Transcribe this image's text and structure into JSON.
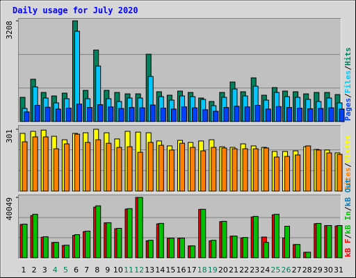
{
  "title": "Daily usage for July 2020",
  "separator": "/",
  "categories": [
    "1",
    "2",
    "3",
    "4",
    "5",
    "6",
    "7",
    "8",
    "9",
    "10",
    "11",
    "12",
    "13",
    "14",
    "15",
    "16",
    "17",
    "18",
    "19",
    "20",
    "21",
    "22",
    "23",
    "24",
    "25",
    "26",
    "27",
    "28",
    "29",
    "30",
    "31"
  ],
  "category_colors": [
    "#000000",
    "#000000",
    "#000000",
    "#00805c",
    "#00805c",
    "#000000",
    "#000000",
    "#000000",
    "#000000",
    "#000000",
    "#00805c",
    "#00805c",
    "#000000",
    "#000000",
    "#000000",
    "#000000",
    "#000000",
    "#00805c",
    "#00805c",
    "#000000",
    "#000000",
    "#000000",
    "#000000",
    "#000000",
    "#00805c",
    "#00805c",
    "#000000",
    "#000000",
    "#000000",
    "#000000",
    "#000000"
  ],
  "chart_data": [
    {
      "type": "bar",
      "ylim": [
        0,
        3208
      ],
      "yticks": [
        3208
      ],
      "draw_reversed": true,
      "series": [
        {
          "name": "Pages",
          "color": "#0040ff",
          "values": [
            310,
            520,
            460,
            400,
            430,
            560,
            450,
            540,
            470,
            420,
            450,
            440,
            530,
            430,
            400,
            470,
            440,
            380,
            330,
            450,
            490,
            470,
            520,
            400,
            480,
            450,
            430,
            410,
            420,
            440,
            400
          ]
        },
        {
          "name": "Files",
          "color": "#00c8ff",
          "values": [
            420,
            1106,
            752,
            597,
            730,
            2876,
            730,
            1770,
            730,
            641,
            752,
            752,
            1438,
            796,
            685,
            818,
            796,
            708,
            508,
            774,
            1039,
            818,
            1128,
            685,
            929,
            796,
            774,
            708,
            641,
            752,
            597
          ]
        },
        {
          "name": "Hits",
          "color": "#00805c",
          "values": [
            774,
            1350,
            929,
            818,
            907,
            3208,
            996,
            2278,
            996,
            929,
            885,
            885,
            2146,
            951,
            841,
            973,
            929,
            752,
            641,
            929,
            1261,
            951,
            1394,
            841,
            1084,
            973,
            951,
            885,
            929,
            929,
            862
          ]
        }
      ]
    },
    {
      "type": "bar",
      "ylim": [
        0,
        301
      ],
      "yticks": [
        301
      ],
      "draw_reversed": true,
      "series": [
        {
          "name": "Sites",
          "color": "#ff8000",
          "values": [
            240,
            264,
            264,
            206,
            230,
            277,
            237,
            250,
            233,
            213,
            216,
            189,
            237,
            223,
            200,
            233,
            213,
            196,
            213,
            210,
            206,
            206,
            206,
            210,
            166,
            169,
            176,
            220,
            200,
            186,
            179
          ]
        },
        {
          "name": "Visits",
          "color": "#ffff00",
          "values": [
            281,
            291,
            297,
            267,
            250,
            281,
            284,
            301,
            284,
            254,
            291,
            287,
            284,
            244,
            220,
            247,
            237,
            244,
            250,
            216,
            213,
            230,
            220,
            213,
            193,
            193,
            196,
            216,
            203,
            200,
            186
          ]
        }
      ]
    },
    {
      "type": "bar",
      "ylim": [
        0,
        40049
      ],
      "yticks": [
        40049
      ],
      "draw_reversed": false,
      "series": [
        {
          "name": "kB F",
          "color": "#ff0000",
          "values": [
            22100,
            28000,
            13700,
            10200,
            8200,
            14900,
            17400,
            33600,
            23200,
            19300,
            32300,
            40049,
            11300,
            22500,
            13000,
            13000,
            7900,
            32100,
            11300,
            24000,
            14400,
            13200,
            27100,
            13800,
            28500,
            13200,
            8800,
            3700,
            22600,
            21400,
            21100
          ]
        },
        {
          "name": "kB In",
          "color": "#00c000",
          "values": [
            22354,
            28873,
            13971,
            10245,
            8383,
            15368,
            17697,
            34462,
            23285,
            19559,
            32599,
            40049,
            11643,
            22819,
            13040,
            13040,
            7917,
            32133,
            11643,
            24216,
            14437,
            13505,
            27476,
            10245,
            28873,
            20957,
            8848,
            3726,
            22819,
            21422,
            21422
          ]
        },
        {
          "name": "kB Out",
          "color": "#0080c0",
          "values": [
            null,
            null,
            null,
            null,
            null,
            null,
            null,
            null,
            null,
            null,
            null,
            null,
            null,
            null,
            null,
            null,
            null,
            null,
            null,
            null,
            null,
            null,
            null,
            null,
            null,
            null,
            null,
            null,
            null,
            null,
            null
          ]
        }
      ]
    }
  ]
}
